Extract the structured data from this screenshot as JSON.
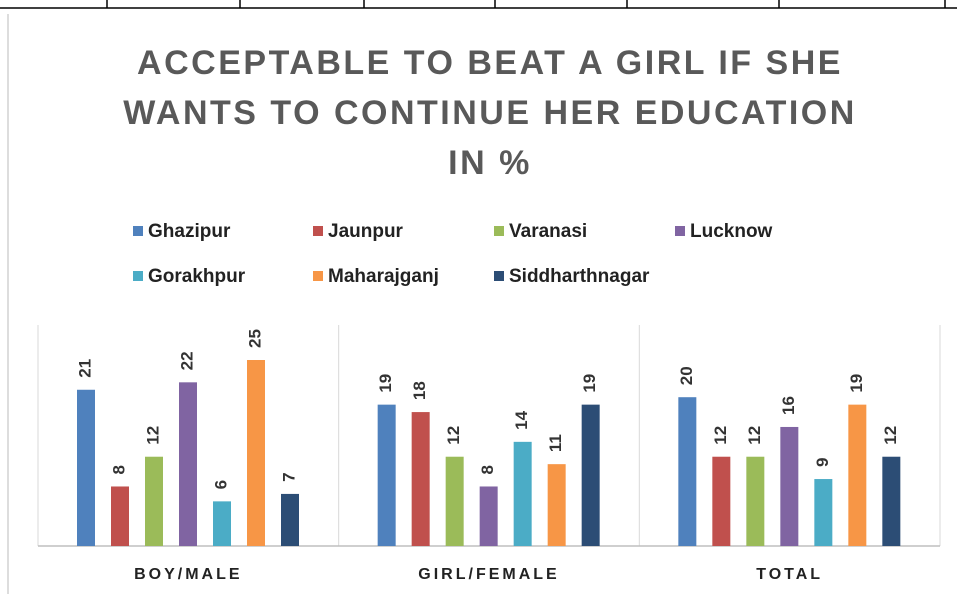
{
  "chart_data": {
    "type": "bar",
    "title": "ACCEPTABLE TO BEAT A GIRL IF SHE WANTS TO CONTINUE HER EDUCATION IN %",
    "categories": [
      "BOY/MALE",
      "GIRL/FEMALE",
      "TOTAL"
    ],
    "series": [
      {
        "name": "Ghazipur",
        "color": "#4f81bd",
        "values": [
          21,
          19,
          20
        ]
      },
      {
        "name": "Jaunpur",
        "color": "#c0504d",
        "values": [
          8,
          18,
          12
        ]
      },
      {
        "name": "Varanasi",
        "color": "#9bbb59",
        "values": [
          12,
          12,
          12
        ]
      },
      {
        "name": "Lucknow",
        "color": "#8064a2",
        "values": [
          22,
          8,
          16
        ]
      },
      {
        "name": "Gorakhpur",
        "color": "#4bacc6",
        "values": [
          6,
          14,
          9
        ]
      },
      {
        "name": "Maharajganj",
        "color": "#f79646",
        "values": [
          25,
          11,
          19
        ]
      },
      {
        "name": "Siddharthnagar",
        "color": "#2c4d75",
        "values": [
          7,
          19,
          12
        ]
      }
    ],
    "legend": "top"
  }
}
